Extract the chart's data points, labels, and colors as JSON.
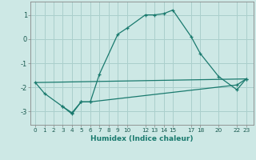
{
  "xlabel": "Humidex (Indice chaleur)",
  "background_color": "#cde8e5",
  "grid_color": "#aacfcc",
  "line_color": "#1a7a6e",
  "series1_x": [
    0,
    1,
    3,
    4,
    5,
    6,
    7,
    9,
    10,
    12,
    13,
    14,
    15,
    17,
    18,
    20,
    22,
    23
  ],
  "series1_y": [
    -1.8,
    -2.25,
    -2.8,
    -3.1,
    -2.6,
    -2.6,
    -1.45,
    0.2,
    0.45,
    1.0,
    1.0,
    1.05,
    1.2,
    0.1,
    -0.6,
    -1.55,
    -2.1,
    -1.65
  ],
  "series2_x": [
    3,
    4,
    5,
    6,
    22,
    23
  ],
  "series2_y": [
    -2.8,
    -3.05,
    -2.6,
    -2.6,
    -1.9,
    -1.65
  ],
  "series3_x": [
    0,
    23
  ],
  "series3_y": [
    -1.8,
    -1.65
  ],
  "xticks": [
    0,
    1,
    2,
    3,
    4,
    5,
    6,
    7,
    8,
    9,
    10,
    12,
    13,
    14,
    15,
    17,
    18,
    20,
    22,
    23
  ],
  "yticks": [
    -3,
    -2,
    -1,
    0,
    1
  ],
  "xlim": [
    -0.5,
    23.8
  ],
  "ylim": [
    -3.55,
    1.55
  ]
}
